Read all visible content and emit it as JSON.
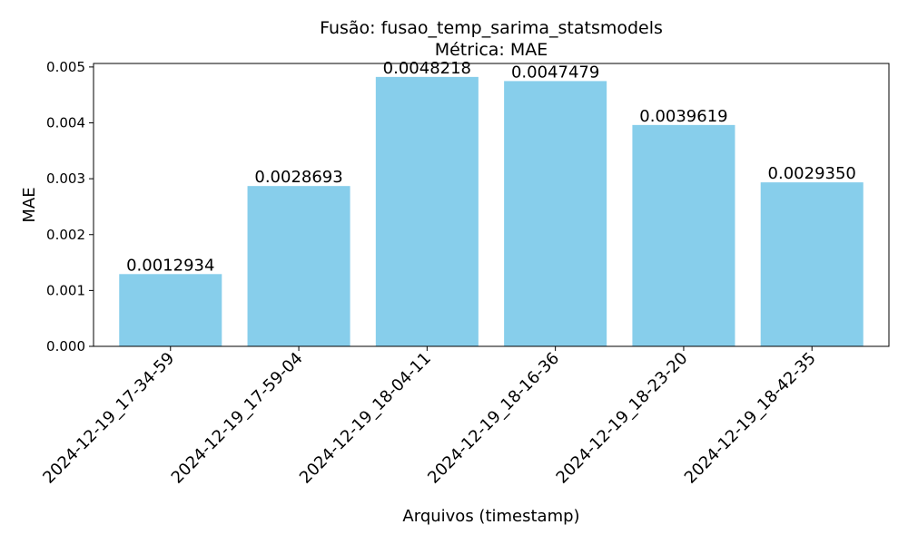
{
  "chart_data": {
    "type": "bar",
    "title_line1": "Fusão: fusao_temp_sarima_statsmodels",
    "title_line2": "Métrica: MAE",
    "xlabel": "Arquivos (timestamp)",
    "ylabel": "MAE",
    "categories": [
      "2024-12-19_17-34-59",
      "2024-12-19_17-59-04",
      "2024-12-19_18-04-11",
      "2024-12-19_18-16-36",
      "2024-12-19_18-23-20",
      "2024-12-19_18-42-35"
    ],
    "values": [
      0.0012934,
      0.0028693,
      0.0048218,
      0.0047479,
      0.0039619,
      0.002935
    ],
    "value_labels": [
      "0.0012934",
      "0.0028693",
      "0.0048218",
      "0.0047479",
      "0.0039619",
      "0.0029350"
    ],
    "yticks": [
      0,
      0.001,
      0.002,
      0.003,
      0.004,
      0.005
    ],
    "ytick_labels": [
      "0.000",
      "0.001",
      "0.002",
      "0.003",
      "0.004",
      "0.005"
    ],
    "ylim": [
      0,
      0.005063
    ],
    "grid": false,
    "bar_color": "#87ceeb"
  }
}
